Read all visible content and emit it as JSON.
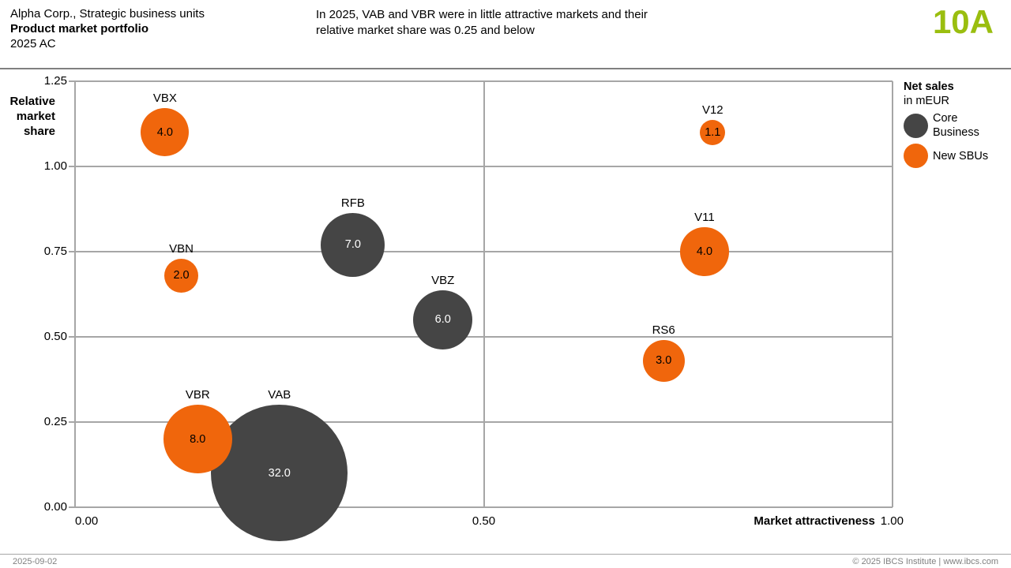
{
  "header": {
    "subject": "Alpha Corp., Strategic business units",
    "title": "Product market portfolio",
    "scenario": "2025 AC",
    "message": "In 2025, VAB and VBR were in little attractive markets and their relative market share was 0.25 and below",
    "page_id": "10A",
    "page_id_color": "#9abe0f"
  },
  "legend": {
    "title": "Net sales",
    "unit": "in mEUR",
    "items": [
      {
        "label": "Core Business",
        "color": "#454545"
      },
      {
        "label": "New SBUs",
        "color": "#f0660c"
      }
    ]
  },
  "footer": {
    "date": "2025-09-02",
    "copyright": "© 2025 IBCS Institute | www.ibcs.com"
  },
  "colors": {
    "grid": "#a6a6a6",
    "core": "#454545",
    "new_sbu": "#f0660c"
  },
  "chart_data": {
    "type": "scatter",
    "subtype": "bubble",
    "title": "Product market portfolio 2025 AC",
    "xlabel": "Market attractiveness",
    "ylabel": "Relative market share",
    "value_label": "Net sales in mEUR",
    "xlim": [
      0,
      1.0
    ],
    "ylim": [
      0,
      1.25
    ],
    "x_ticks": [
      0,
      0.5,
      1.0
    ],
    "x_tick_labels": [
      "0.00",
      "0.50",
      "1.00"
    ],
    "y_ticks": [
      0,
      0.25,
      0.5,
      0.75,
      1.0,
      1.25
    ],
    "y_tick_labels": [
      "0.00",
      "0.25",
      "0.50",
      "0.75",
      "1.00",
      "1.25"
    ],
    "grid": true,
    "legend_position": "right",
    "series": [
      {
        "name": "Core Business",
        "color": "#454545",
        "value_text_color": "#ffffff",
        "points": [
          {
            "label": "RFB",
            "x": 0.34,
            "y": 0.77,
            "value": 7.0
          },
          {
            "label": "VBZ",
            "x": 0.45,
            "y": 0.55,
            "value": 6.0
          },
          {
            "label": "VAB",
            "x": 0.25,
            "y": 0.1,
            "value": 32.0
          }
        ]
      },
      {
        "name": "New SBUs",
        "color": "#f0660c",
        "value_text_color": "#000000",
        "points": [
          {
            "label": "VBX",
            "x": 0.11,
            "y": 1.1,
            "value": 4.0
          },
          {
            "label": "VBN",
            "x": 0.13,
            "y": 0.68,
            "value": 2.0
          },
          {
            "label": "VBR",
            "x": 0.15,
            "y": 0.2,
            "value": 8.0
          },
          {
            "label": "V12",
            "x": 0.78,
            "y": 1.1,
            "value": 1.1
          },
          {
            "label": "V11",
            "x": 0.77,
            "y": 0.75,
            "value": 4.0
          },
          {
            "label": "RS6",
            "x": 0.72,
            "y": 0.43,
            "value": 3.0
          }
        ]
      }
    ]
  }
}
